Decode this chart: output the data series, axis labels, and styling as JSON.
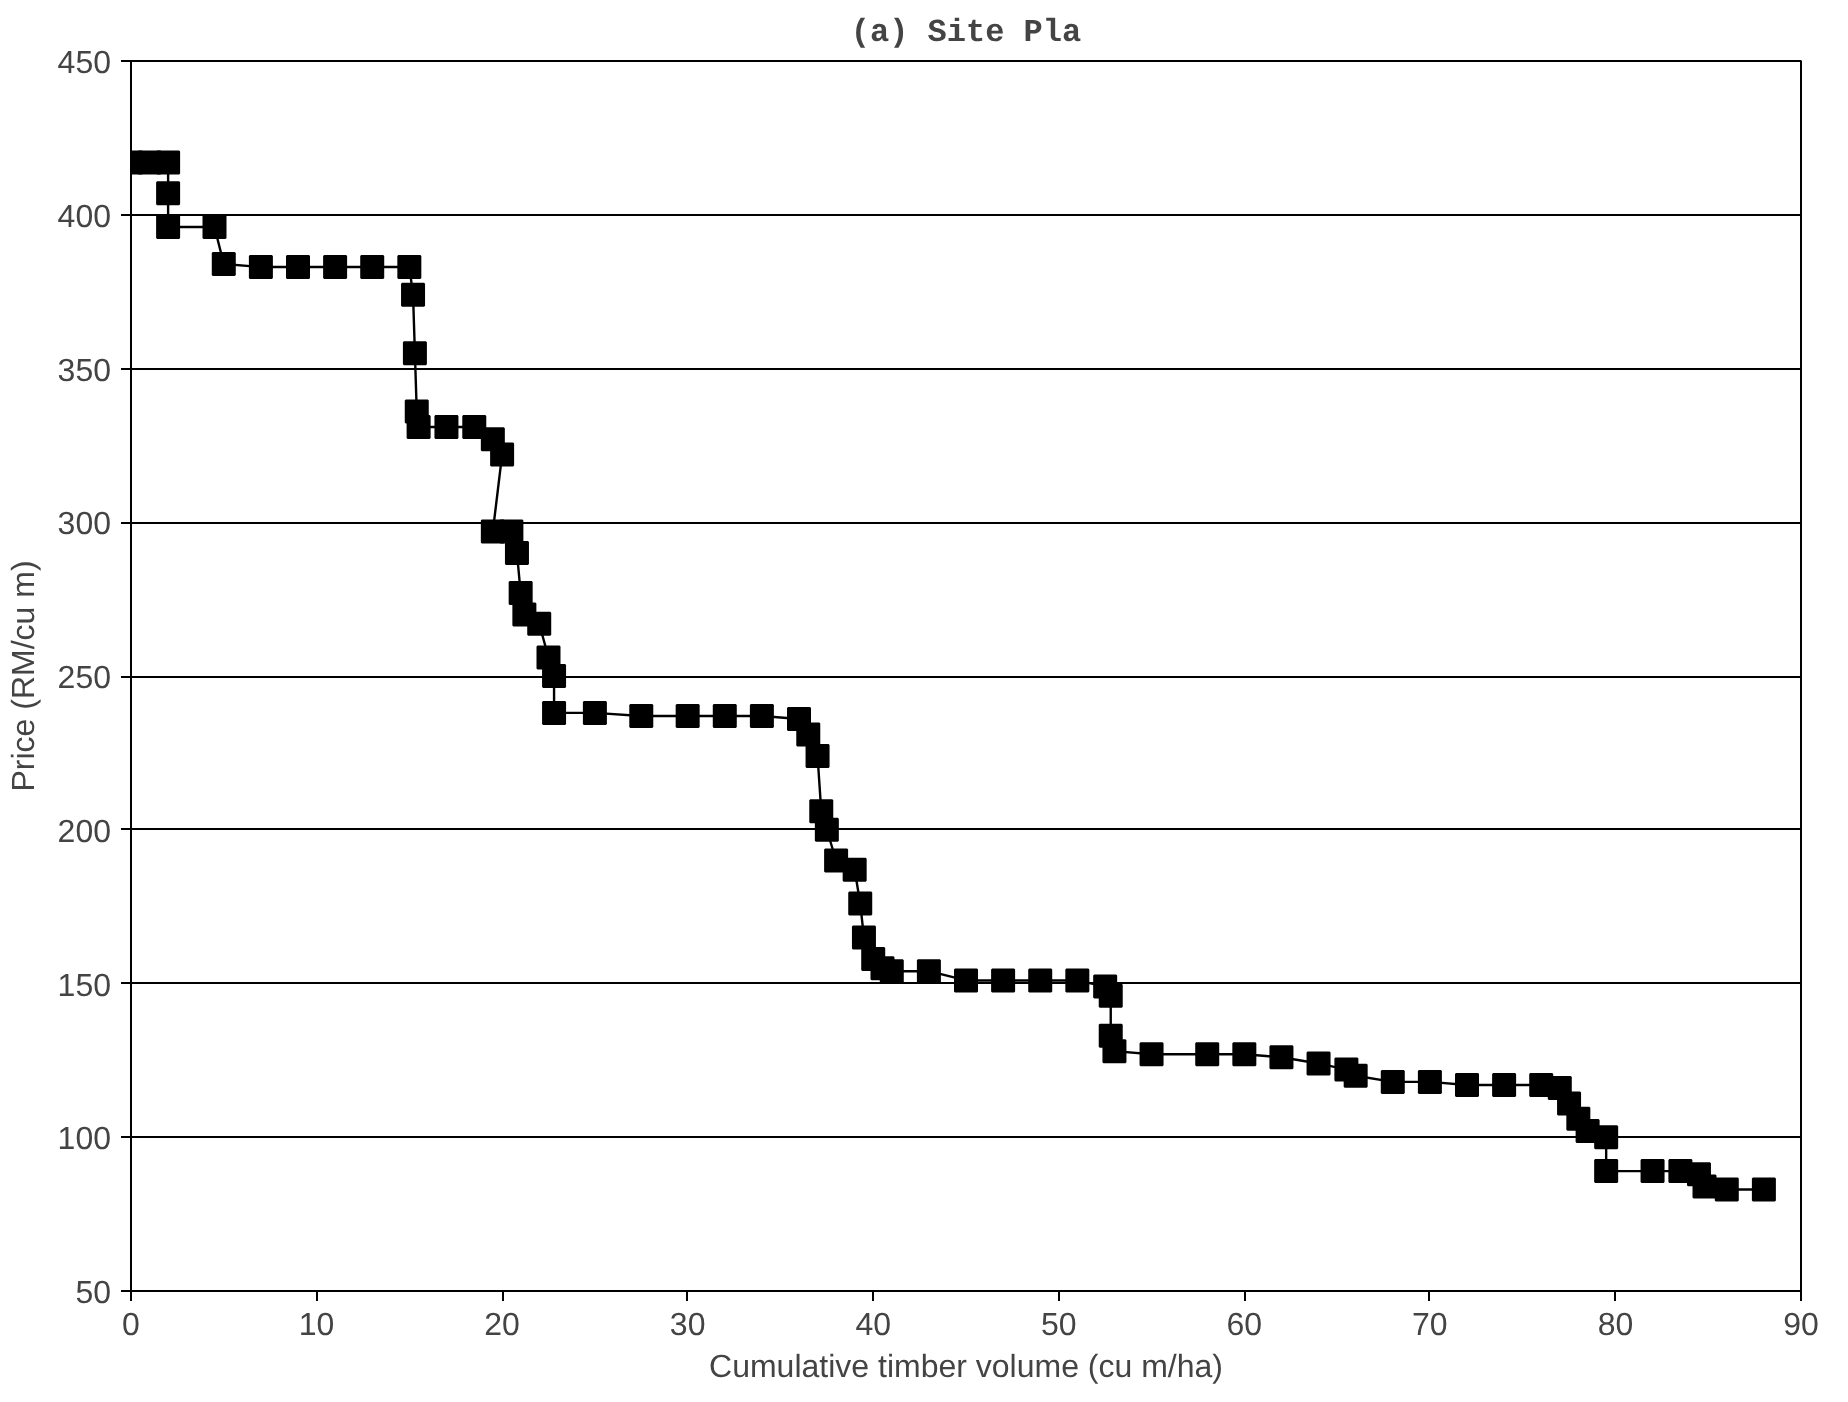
{
  "chart_data": {
    "type": "line",
    "title": "(a) Site Pla",
    "xlabel": "Cumulative timber volume (cu m/ha)",
    "ylabel": "Price (RM/cu m)",
    "xlim": [
      0,
      90
    ],
    "xticks": [
      0,
      10,
      20,
      30,
      40,
      50,
      60,
      70,
      80,
      90
    ],
    "ylim": [
      50,
      450
    ],
    "yticks": [
      50,
      100,
      150,
      200,
      250,
      300,
      350,
      400,
      450
    ],
    "grid": "y",
    "marker": "square",
    "line_style": "solid",
    "series": [
      {
        "color": "#000000",
        "x": [
          0,
          1,
          2,
          2,
          2,
          4.5,
          5,
          7,
          9,
          11,
          13,
          15,
          15.2,
          15.3,
          15.4,
          15.5,
          17,
          18.5,
          19.5,
          20,
          19.5,
          20.5,
          20.8,
          21,
          21.2,
          22,
          22.5,
          22.8,
          22.8,
          25,
          27.5,
          30,
          32,
          34,
          36,
          36.5,
          37,
          37.2,
          37.5,
          38,
          39,
          39.3,
          39.5,
          40,
          40.5,
          41,
          43,
          45,
          47,
          49,
          51,
          52.5,
          52.8,
          52.8,
          53,
          55,
          58,
          60,
          62,
          64,
          65.5,
          66,
          68,
          70,
          72,
          74,
          76,
          77,
          77.5,
          78,
          78.5,
          79.5,
          79.5,
          82,
          83.5,
          84.5,
          84.8,
          86,
          88
        ],
        "values": [
          417,
          417,
          417,
          407,
          396,
          396,
          384,
          383,
          383,
          383,
          383,
          383,
          374,
          355,
          336,
          331,
          331,
          331,
          327,
          322,
          297,
          297,
          290,
          277,
          270,
          267,
          256,
          250,
          238,
          238,
          237,
          237,
          237,
          237,
          236,
          231,
          224,
          206,
          200,
          190,
          187,
          176,
          165,
          158,
          155,
          154,
          154,
          151,
          151,
          151,
          151,
          149,
          146,
          133,
          128,
          127,
          127,
          127,
          126,
          124,
          122,
          120,
          118,
          118,
          117,
          117,
          117,
          116,
          111,
          106,
          102,
          100,
          89,
          89,
          89,
          88,
          84,
          83,
          83
        ]
      }
    ]
  }
}
